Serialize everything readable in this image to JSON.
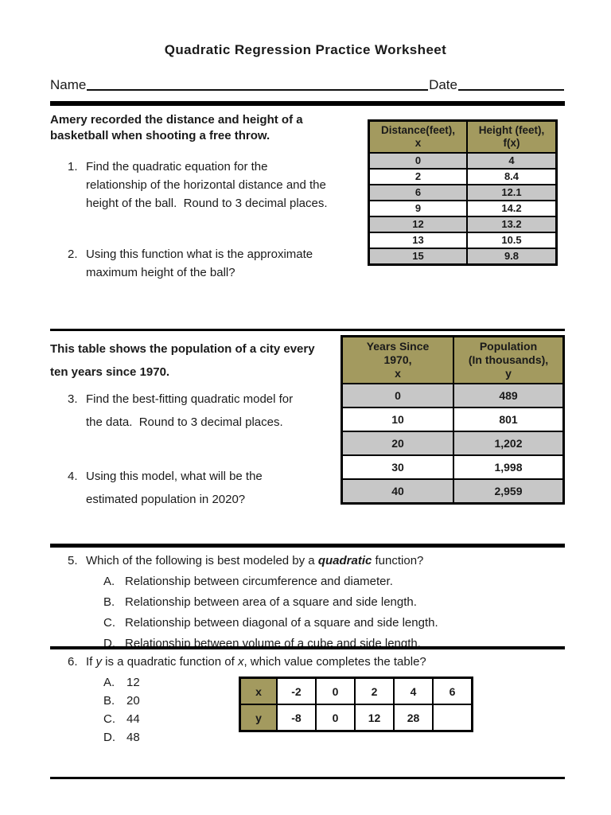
{
  "colors": {
    "header_olive": "#A39A5F",
    "row_gray": "#C7C7C7"
  },
  "header": {
    "title": "Quadratic Regression Practice Worksheet",
    "name_label": "Name",
    "date_label": "Date"
  },
  "section1": {
    "intro_lines": [
      "Amery recorded the distance and height of a",
      "basketball when shooting a free throw."
    ],
    "q1": {
      "num": "1.",
      "lines": [
        "Find the quadratic equation for the",
        "relationship of the horizontal distance and the",
        "height of the ball.  Round to 3 decimal places."
      ]
    },
    "q2": {
      "num": "2.",
      "lines": [
        "Using this function what is the approximate",
        "maximum height of the ball?"
      ]
    },
    "table": {
      "col1_header": [
        "Distance(feet),",
        "x"
      ],
      "col2_header": [
        "Height (feet),",
        "f(x)"
      ],
      "rows": [
        [
          "0",
          "4"
        ],
        [
          "2",
          "8.4"
        ],
        [
          "6",
          "12.1"
        ],
        [
          "9",
          "14.2"
        ],
        [
          "12",
          "13.2"
        ],
        [
          "13",
          "10.5"
        ],
        [
          "15",
          "9.8"
        ]
      ]
    }
  },
  "section2": {
    "intro_lines": [
      "This table shows the population of a city every",
      "ten years since 1970."
    ],
    "q3": {
      "num": "3.",
      "lines": [
        "Find the best-fitting quadratic model for",
        "the data.  Round to 3 decimal places."
      ]
    },
    "q4": {
      "num": "4.",
      "lines": [
        "Using this model, what will be the",
        "estimated population in 2020?"
      ]
    },
    "table": {
      "col1_header": [
        "Years Since",
        "1970,",
        "x"
      ],
      "col2_header": [
        "Population",
        "(In thousands),",
        "y"
      ],
      "rows": [
        [
          "0",
          "489"
        ],
        [
          "10",
          "801"
        ],
        [
          "20",
          "1,202"
        ],
        [
          "30",
          "1,998"
        ],
        [
          "40",
          "2,959"
        ]
      ]
    }
  },
  "q5": {
    "num": "5.",
    "pre": "Which of the following is best modeled by a ",
    "emph": "quadratic",
    "post": " function?",
    "options": [
      {
        "letter": "A.",
        "text": "Relationship between circumference and diameter."
      },
      {
        "letter": "B.",
        "text": "Relationship between area of a square and side length."
      },
      {
        "letter": "C.",
        "text": "Relationship between diagonal of a square and side length."
      },
      {
        "letter": "D.",
        "text": "Relationship between volume of a cube and side length."
      }
    ]
  },
  "q6": {
    "num": "6.",
    "pre": "If ",
    "var1": "y",
    "mid": " is a quadratic function of ",
    "var2": "x",
    "post": ", which value completes the table?",
    "options": [
      {
        "letter": "A.",
        "text": "12"
      },
      {
        "letter": "B.",
        "text": "20"
      },
      {
        "letter": "C.",
        "text": "44"
      },
      {
        "letter": "D.",
        "text": "48"
      }
    ],
    "table": {
      "row_labels": [
        "x",
        "y"
      ],
      "x_values": [
        "-2",
        "0",
        "2",
        "4",
        "6"
      ],
      "y_values": [
        "-8",
        "0",
        "12",
        "28",
        ""
      ]
    }
  }
}
